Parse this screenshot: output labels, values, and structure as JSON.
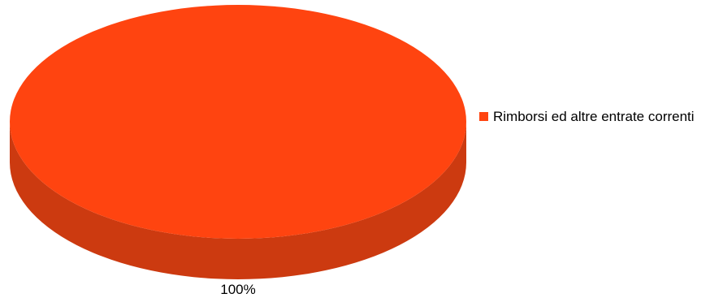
{
  "chart_data": {
    "type": "pie",
    "style": "3d",
    "categories": [
      "Rimborsi ed altre entrate correnti"
    ],
    "values": [
      100
    ],
    "data_labels": [
      "100%"
    ],
    "colors": {
      "top": "#FF4410",
      "side": "#CC3A10"
    },
    "legend": {
      "position": "right",
      "entries": [
        {
          "label": "Rimborsi ed altre entrate correnti",
          "color": "#FF4410"
        }
      ]
    },
    "title": "",
    "xlabel": "",
    "ylabel": ""
  }
}
